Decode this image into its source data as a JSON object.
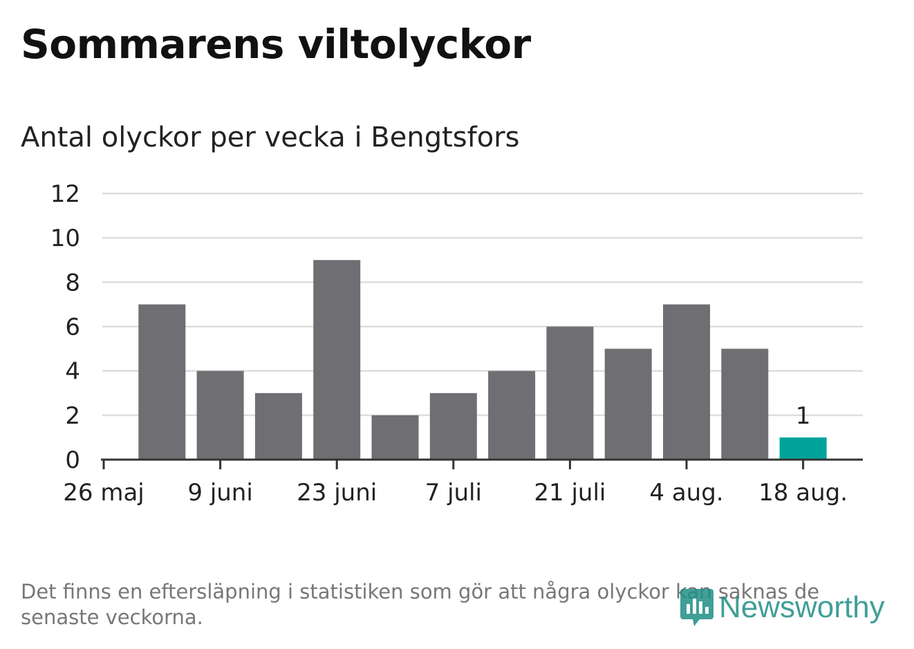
{
  "header": {
    "title": "Sommarens viltolyckor",
    "subtitle": "Antal olyckor per vecka i Bengtsfors"
  },
  "footer": {
    "note": "Det finns en eftersläpning i statistiken som gör att några olyckor kan saknas de senaste veckorna.",
    "logo_text": "Newsworthy"
  },
  "colors": {
    "bar": "#6f6e73",
    "highlight": "#00a39a",
    "grid": "#dddddd",
    "axis": "#333333",
    "logo": "#1f8f85"
  },
  "chart_data": {
    "type": "bar",
    "title": "Sommarens viltolyckor",
    "subtitle": "Antal olyckor per vecka i Bengtsfors",
    "xlabel": "",
    "ylabel": "",
    "ylim": [
      0,
      12
    ],
    "yticks": [
      0,
      2,
      4,
      6,
      8,
      10,
      12
    ],
    "xtick_labels": [
      "26 maj",
      "9 juni",
      "23 juni",
      "7 juli",
      "21 juli",
      "4 aug.",
      "18 aug."
    ],
    "values": [
      7,
      4,
      3,
      9,
      2,
      3,
      4,
      6,
      5,
      7,
      5,
      1
    ],
    "highlight_index": 11,
    "annotations": [
      {
        "index": 11,
        "text": "1"
      }
    ],
    "grid": true,
    "legend": "none"
  }
}
